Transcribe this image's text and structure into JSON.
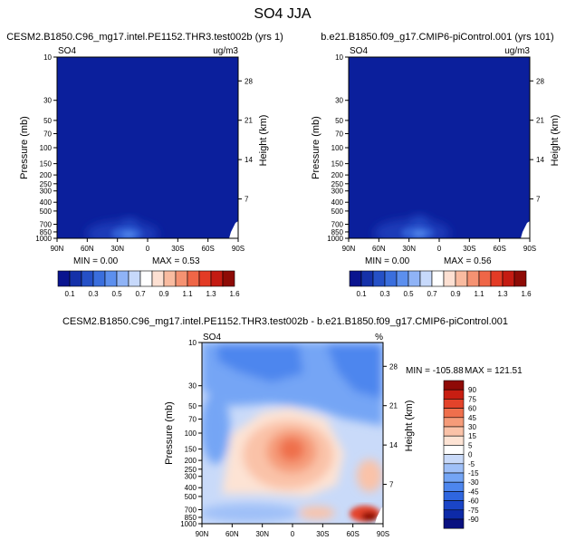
{
  "title": "SO4 JJA",
  "colors": {
    "background": "#ffffff",
    "field_base": "#0b1f9c",
    "abs_scale": [
      "#0a148f",
      "#1531a9",
      "#2550c6",
      "#3a6edd",
      "#5c8fee",
      "#8fb3f6",
      "#c7d9fb",
      "#ffffff",
      "#fde0d2",
      "#f9bba0",
      "#f59272",
      "#ef6647",
      "#e33b25",
      "#c41b12",
      "#8e0b06"
    ],
    "diff_scale": [
      "#0a1180",
      "#0d2aa8",
      "#1a45c7",
      "#2f66df",
      "#4d86ee",
      "#74a5f5",
      "#9fc0f8",
      "#c9daf9",
      "#ffffff",
      "#fde3d4",
      "#fac2a8",
      "#f59b79",
      "#ef6f4c",
      "#e3432a",
      "#c81e12",
      "#8f0a06"
    ]
  },
  "chart_data": [
    {
      "type": "heatmap",
      "title": "CESM2.B1850.C96_mg17.intel.PE1152.THR3.test002b (yrs 1)",
      "variable": "SO4",
      "units": "ug/m3",
      "xlabel": "",
      "ylabel": "Pressure (mb)",
      "ylabel_right": "Height (km)",
      "xticks": [
        "90N",
        "60N",
        "30N",
        "0",
        "30S",
        "60S",
        "90S"
      ],
      "yticks": [
        10,
        30,
        50,
        70,
        100,
        150,
        200,
        250,
        300,
        400,
        500,
        700,
        850,
        1000
      ],
      "yticks_right": [
        28,
        21,
        14,
        7
      ],
      "min_label": "MIN =   0.00",
      "max_label": "MAX =   0.53",
      "min": 0.0,
      "max": 0.53
    },
    {
      "type": "heatmap",
      "title": "b.e21.B1850.f09_g17.CMIP6-piControl.001 (yrs 101)",
      "variable": "SO4",
      "units": "ug/m3",
      "xlabel": "",
      "ylabel": "Pressure (mb)",
      "ylabel_right": "Height (km)",
      "xticks": [
        "90N",
        "60N",
        "30N",
        "0",
        "30S",
        "60S",
        "90S"
      ],
      "yticks": [
        10,
        30,
        50,
        70,
        100,
        150,
        200,
        250,
        300,
        400,
        500,
        700,
        850,
        1000
      ],
      "yticks_right": [
        28,
        21,
        14,
        7
      ],
      "min_label": "MIN =   0.00",
      "max_label": "MAX =   0.56",
      "min": 0.0,
      "max": 0.56
    },
    {
      "type": "heatmap",
      "title": "CESM2.B1850.C96_mg17.intel.PE1152.THR3.test002b - b.e21.B1850.f09_g17.CMIP6-piControl.001",
      "variable": "SO4",
      "units": "%",
      "xlabel": "",
      "ylabel": "Pressure (mb)",
      "ylabel_right": "Height (km)",
      "xticks": [
        "90N",
        "60N",
        "30N",
        "0",
        "30S",
        "60S",
        "90S"
      ],
      "yticks": [
        10,
        30,
        50,
        70,
        100,
        150,
        200,
        250,
        300,
        400,
        500,
        700,
        850,
        1000
      ],
      "yticks_right": [
        28,
        21,
        14,
        7
      ],
      "min_label": "MIN = -105.88",
      "max_label": "MAX = 121.51",
      "min": -105.88,
      "max": 121.51
    }
  ],
  "colorbar_abs": {
    "labels": [
      "0.1",
      "0.3",
      "0.5",
      "0.7",
      "0.9",
      "1.1",
      "1.3",
      "1.6"
    ],
    "levels": [
      0.1,
      0.2,
      0.3,
      0.4,
      0.5,
      0.6,
      0.7,
      0.8,
      0.9,
      1.0,
      1.1,
      1.2,
      1.3,
      1.6
    ]
  },
  "colorbar_diff": {
    "labels": [
      "90",
      "75",
      "60",
      "45",
      "30",
      "15",
      "5",
      "0",
      "-5",
      "-15",
      "-30",
      "-45",
      "-60",
      "-75",
      "-90"
    ],
    "levels": [
      90,
      75,
      60,
      45,
      30,
      15,
      5,
      0,
      -5,
      -15,
      -30,
      -45,
      -60,
      -75,
      -90
    ]
  }
}
